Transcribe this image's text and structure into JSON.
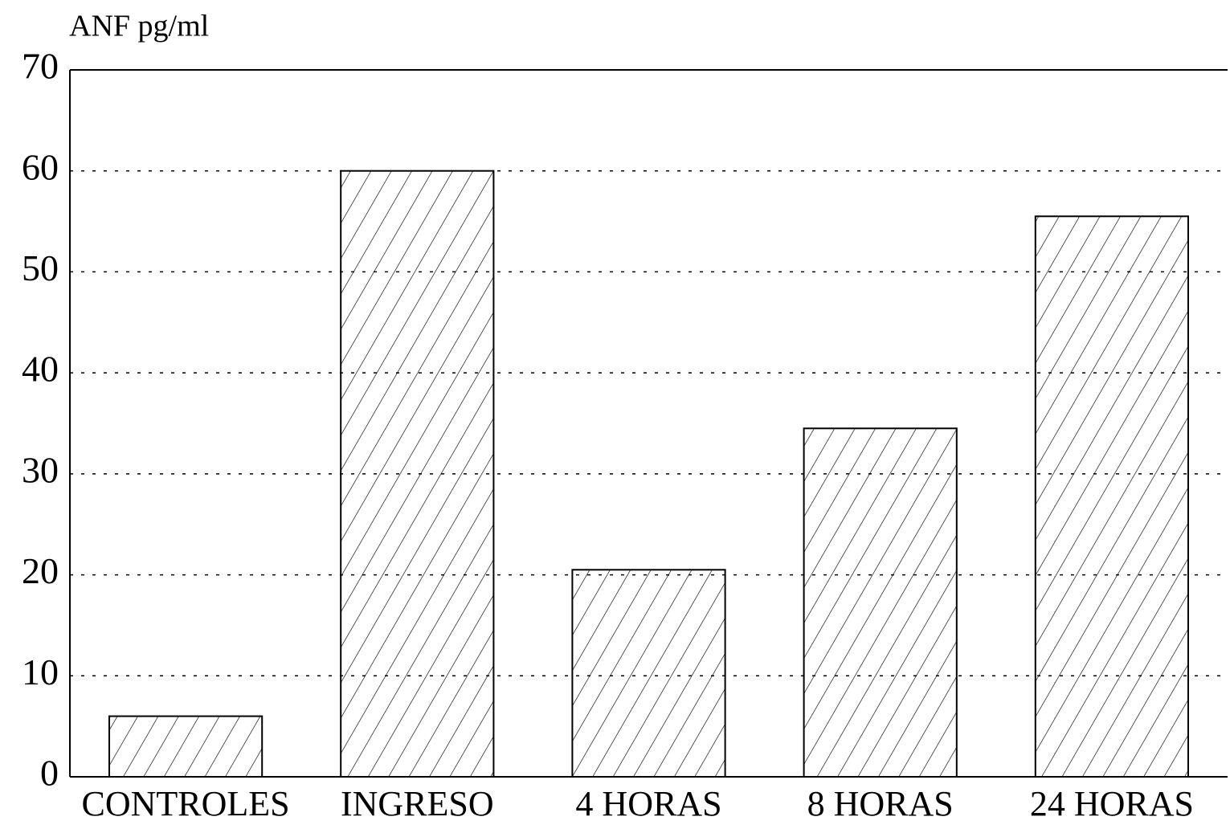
{
  "chart_data": {
    "type": "bar",
    "title": "ANF pg/ml",
    "categories": [
      "CONTROLES",
      "INGRESO",
      "4 HORAS",
      "8 HORAS",
      "24 HORAS"
    ],
    "values": [
      6,
      60,
      20.5,
      34.5,
      55.5
    ],
    "color": "#000000",
    "ylim": [
      0,
      70
    ],
    "yticks": [
      0,
      10,
      20,
      30,
      40,
      50,
      60,
      70
    ],
    "grid": true
  }
}
